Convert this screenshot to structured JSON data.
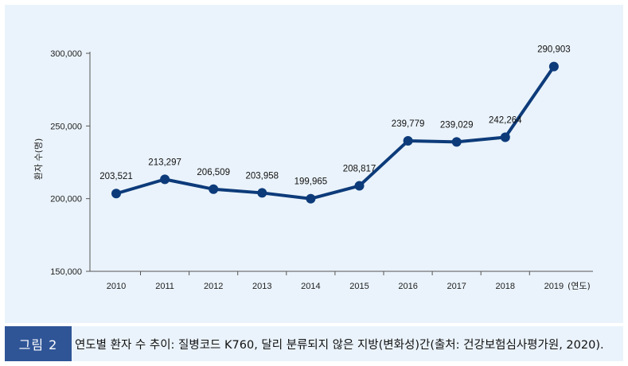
{
  "chart_data": {
    "type": "line",
    "ylabel": "환자 수(명)",
    "xlabel": "(연도)",
    "categories": [
      "2010",
      "2011",
      "2012",
      "2013",
      "2014",
      "2015",
      "2016",
      "2017",
      "2018",
      "2019"
    ],
    "values": [
      203521,
      213297,
      206509,
      203958,
      199965,
      208817,
      239779,
      239029,
      242264,
      290903
    ],
    "data_labels": [
      "203,521",
      "213,297",
      "206,509",
      "203,958",
      "199,965",
      "208,817",
      "239,779",
      "239,029",
      "242,264",
      "290,903"
    ],
    "y_ticks": [
      150000,
      200000,
      250000,
      300000
    ],
    "y_tick_labels": [
      "150,000",
      "200,000",
      "250,000",
      "300,000"
    ],
    "ylim": [
      150000,
      300000
    ],
    "grid": false,
    "line_color": "#0d3b7a"
  },
  "caption": {
    "tag": "그림 2",
    "text": "연도별 환자 수 추이: 질병코드 K760, 달리 분류되지 않은 지방(변화성)간(출처: 건강보험심사평가원, 2020)."
  }
}
